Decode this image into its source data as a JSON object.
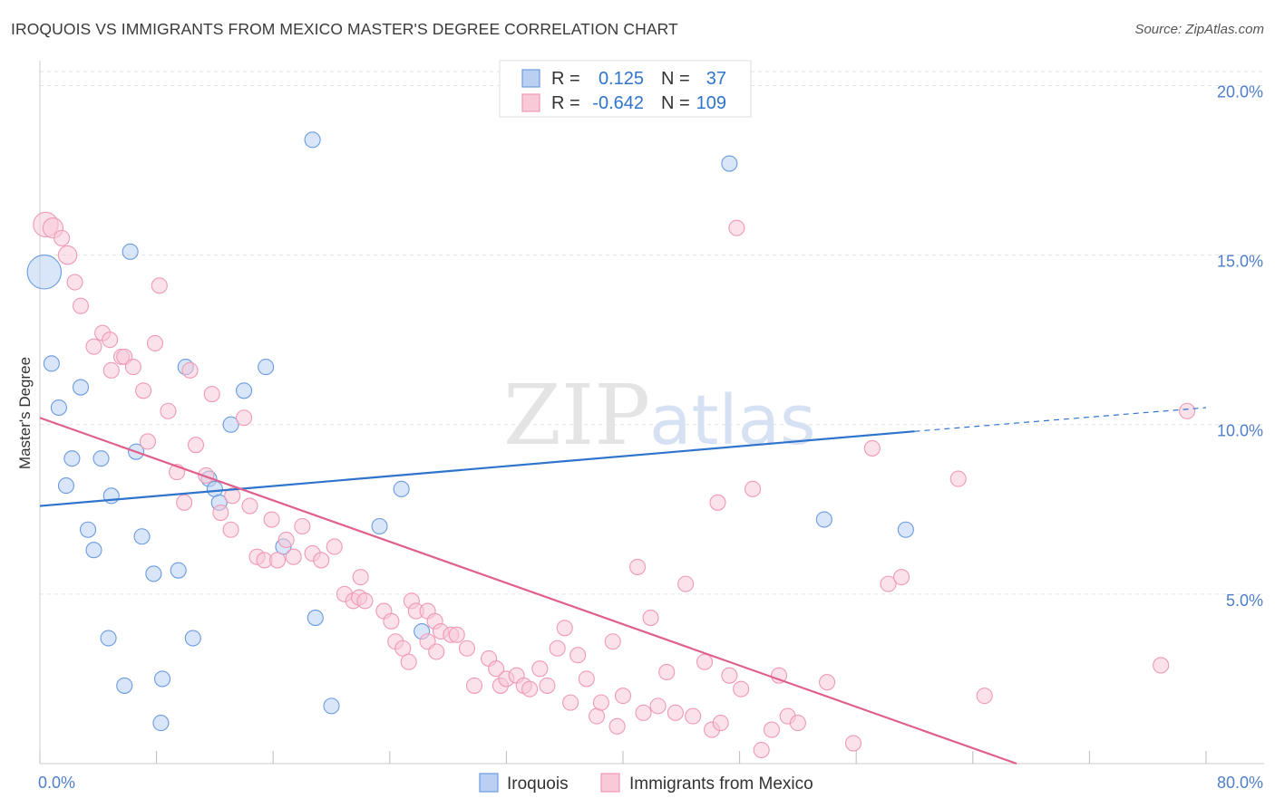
{
  "chart_data": {
    "type": "scatter",
    "title": "IROQUOIS VS IMMIGRANTS FROM MEXICO MASTER'S DEGREE CORRELATION CHART",
    "source": "Source: ZipAtlas.com",
    "watermark": {
      "zip": "ZIP",
      "atlas": "atlas"
    },
    "ylabel": "Master's Degree",
    "xlim": [
      0,
      80
    ],
    "ylim": [
      0,
      20.6
    ],
    "x_tick_labels": [
      "0.0%",
      "80.0%"
    ],
    "y_ticks": [
      {
        "value": 5,
        "label": "5.0%"
      },
      {
        "value": 10,
        "label": "10.0%"
      },
      {
        "value": 15,
        "label": "15.0%"
      },
      {
        "value": 20,
        "label": "20.0%"
      }
    ],
    "legend_stats": [
      {
        "series": "Iroquois",
        "r_label": "R =",
        "r_value": "0.125",
        "n_label": "N =",
        "n_value": "37"
      },
      {
        "series": "Immigrants from Mexico",
        "r_label": "R =",
        "r_value": "-0.642",
        "n_label": "N =",
        "n_value": "109"
      }
    ],
    "series": [
      {
        "name": "Iroquois",
        "color": "#6a9be0",
        "fill": "#b9d0f2",
        "line_color": "#2f74cc",
        "trend": {
          "x_start": 0,
          "y_start": 7.6,
          "x_end": 60,
          "y_end": 9.8,
          "dash_x_end": 80,
          "dash_y_end": 10.5
        },
        "points": [
          [
            0.3,
            14.5,
            2.2
          ],
          [
            18.7,
            18.4,
            1
          ],
          [
            47.3,
            17.7,
            1
          ],
          [
            6.2,
            15.1,
            1
          ],
          [
            0.8,
            11.8,
            1
          ],
          [
            2.8,
            11.1,
            1
          ],
          [
            1.3,
            10.5,
            1
          ],
          [
            10.0,
            11.7,
            1
          ],
          [
            15.5,
            11.7,
            1
          ],
          [
            14.0,
            11.0,
            1
          ],
          [
            13.1,
            10.0,
            1
          ],
          [
            6.6,
            9.2,
            1
          ],
          [
            2.2,
            9.0,
            1
          ],
          [
            4.2,
            9.0,
            1
          ],
          [
            1.8,
            8.2,
            1
          ],
          [
            11.6,
            8.4,
            1
          ],
          [
            12.0,
            8.1,
            1
          ],
          [
            4.9,
            7.9,
            1
          ],
          [
            12.3,
            7.7,
            1
          ],
          [
            24.8,
            8.1,
            1
          ],
          [
            3.3,
            6.9,
            1
          ],
          [
            7.0,
            6.7,
            1
          ],
          [
            3.7,
            6.3,
            1
          ],
          [
            16.7,
            6.4,
            1
          ],
          [
            23.3,
            7.0,
            1
          ],
          [
            7.8,
            5.6,
            1
          ],
          [
            9.5,
            5.7,
            1
          ],
          [
            53.8,
            7.2,
            1
          ],
          [
            59.4,
            6.9,
            1
          ],
          [
            4.7,
            3.7,
            1
          ],
          [
            10.5,
            3.7,
            1
          ],
          [
            18.9,
            4.3,
            1
          ],
          [
            26.2,
            3.9,
            1
          ],
          [
            8.4,
            2.5,
            1
          ],
          [
            5.8,
            2.3,
            1
          ],
          [
            20.0,
            1.7,
            1
          ],
          [
            8.3,
            1.2,
            1
          ]
        ]
      },
      {
        "name": "Immigrants from Mexico",
        "color": "#f09ab4",
        "fill": "#f8c9d7",
        "line_color": "#e0608c",
        "trend": {
          "x_start": 0,
          "y_start": 10.2,
          "x_end": 67,
          "y_end": 0
        },
        "points": [
          [
            0.4,
            15.9,
            1.6
          ],
          [
            0.9,
            15.8,
            1.3
          ],
          [
            1.5,
            15.5,
            1
          ],
          [
            1.9,
            15.0,
            1.2
          ],
          [
            2.4,
            14.2,
            1
          ],
          [
            8.2,
            14.1,
            1
          ],
          [
            2.8,
            13.5,
            1
          ],
          [
            3.7,
            12.3,
            1
          ],
          [
            4.3,
            12.7,
            1
          ],
          [
            4.8,
            12.5,
            1
          ],
          [
            5.6,
            12.0,
            1
          ],
          [
            5.8,
            12.0,
            1
          ],
          [
            7.9,
            12.4,
            1
          ],
          [
            4.9,
            11.6,
            1
          ],
          [
            6.4,
            11.7,
            1
          ],
          [
            10.3,
            11.6,
            1
          ],
          [
            7.1,
            11.0,
            1
          ],
          [
            11.8,
            10.9,
            1
          ],
          [
            8.8,
            10.4,
            1
          ],
          [
            14.0,
            10.2,
            1
          ],
          [
            7.4,
            9.5,
            1
          ],
          [
            10.7,
            9.4,
            1
          ],
          [
            9.4,
            8.6,
            1
          ],
          [
            11.4,
            8.5,
            1
          ],
          [
            13.2,
            7.9,
            1
          ],
          [
            9.9,
            7.7,
            1
          ],
          [
            14.4,
            7.6,
            1
          ],
          [
            12.4,
            7.4,
            1
          ],
          [
            15.9,
            7.2,
            1
          ],
          [
            13.1,
            6.9,
            1
          ],
          [
            18.0,
            7.0,
            1
          ],
          [
            16.9,
            6.6,
            1
          ],
          [
            14.9,
            6.1,
            1
          ],
          [
            15.4,
            6.0,
            1
          ],
          [
            16.3,
            6.0,
            1
          ],
          [
            17.4,
            6.1,
            1
          ],
          [
            18.7,
            6.2,
            1
          ],
          [
            19.3,
            6.0,
            1
          ],
          [
            20.2,
            6.4,
            1
          ],
          [
            22.0,
            5.5,
            1
          ],
          [
            20.9,
            5.0,
            1
          ],
          [
            21.5,
            4.8,
            1
          ],
          [
            21.9,
            4.9,
            1
          ],
          [
            22.3,
            4.8,
            1
          ],
          [
            23.6,
            4.5,
            1
          ],
          [
            24.1,
            4.2,
            1
          ],
          [
            25.5,
            4.8,
            1
          ],
          [
            25.8,
            4.5,
            1
          ],
          [
            26.6,
            4.5,
            1
          ],
          [
            27.1,
            4.2,
            1
          ],
          [
            27.5,
            3.9,
            1
          ],
          [
            28.2,
            3.8,
            1
          ],
          [
            24.4,
            3.6,
            1
          ],
          [
            24.9,
            3.4,
            1
          ],
          [
            25.3,
            3.0,
            1
          ],
          [
            26.6,
            3.6,
            1
          ],
          [
            27.2,
            3.3,
            1
          ],
          [
            28.6,
            3.8,
            1
          ],
          [
            29.3,
            3.4,
            1
          ],
          [
            29.8,
            2.3,
            1
          ],
          [
            30.8,
            3.1,
            1
          ],
          [
            31.3,
            2.8,
            1
          ],
          [
            31.6,
            2.3,
            1
          ],
          [
            32.0,
            2.5,
            1
          ],
          [
            32.7,
            2.6,
            1
          ],
          [
            33.2,
            2.3,
            1
          ],
          [
            33.6,
            2.2,
            1
          ],
          [
            34.3,
            2.8,
            1
          ],
          [
            34.8,
            2.3,
            1
          ],
          [
            35.5,
            3.4,
            1
          ],
          [
            36.0,
            4.0,
            1
          ],
          [
            36.4,
            1.8,
            1
          ],
          [
            36.9,
            3.2,
            1
          ],
          [
            37.5,
            2.5,
            1
          ],
          [
            38.2,
            1.4,
            1
          ],
          [
            38.5,
            1.8,
            1
          ],
          [
            39.3,
            3.6,
            1
          ],
          [
            39.6,
            1.1,
            1
          ],
          [
            40.0,
            2.0,
            1
          ],
          [
            41.0,
            5.8,
            1
          ],
          [
            41.4,
            1.5,
            1
          ],
          [
            41.9,
            4.3,
            1
          ],
          [
            42.4,
            1.7,
            1
          ],
          [
            43.0,
            2.7,
            1
          ],
          [
            43.6,
            1.5,
            1
          ],
          [
            44.3,
            5.3,
            1
          ],
          [
            44.8,
            1.4,
            1
          ],
          [
            45.6,
            3.0,
            1
          ],
          [
            46.1,
            1.0,
            1
          ],
          [
            46.7,
            1.2,
            1
          ],
          [
            47.3,
            2.6,
            1
          ],
          [
            48.1,
            2.2,
            1
          ],
          [
            48.9,
            8.1,
            1
          ],
          [
            49.5,
            0.4,
            1
          ],
          [
            50.2,
            1.0,
            1
          ],
          [
            50.7,
            2.6,
            1
          ],
          [
            51.3,
            1.4,
            1
          ],
          [
            52.0,
            1.2,
            1
          ],
          [
            47.8,
            15.8,
            1
          ],
          [
            54.0,
            2.4,
            1
          ],
          [
            55.8,
            0.6,
            1
          ],
          [
            57.1,
            9.3,
            1
          ],
          [
            58.2,
            5.3,
            1
          ],
          [
            59.1,
            5.5,
            1
          ],
          [
            63.0,
            8.4,
            1
          ],
          [
            64.8,
            2.0,
            1
          ],
          [
            76.9,
            2.9,
            1
          ],
          [
            78.7,
            10.4,
            1
          ],
          [
            46.5,
            7.7,
            1
          ]
        ]
      }
    ]
  }
}
